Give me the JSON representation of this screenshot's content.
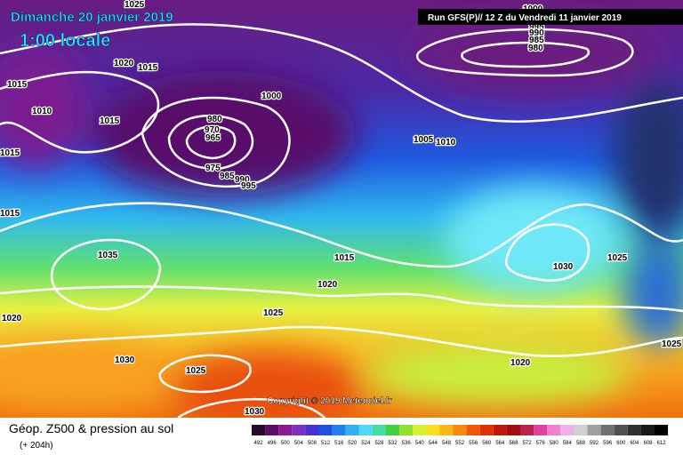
{
  "header": {
    "date": "Dimanche 20 janvier 2019",
    "time": "1:00 locale",
    "run": "Run GFS(P)// 12 Z du Vendredi 11 janvier 2019"
  },
  "isobar_labels": [
    1025,
    1020,
    1015,
    1015,
    1010,
    1015,
    1015,
    1015,
    1000,
    980,
    970,
    965,
    975,
    985,
    990,
    995,
    1005,
    1010,
    1000,
    995,
    990,
    985,
    980,
    1035,
    1015,
    1020,
    1030,
    1025,
    1025,
    1020,
    1030,
    1025,
    1030,
    1020,
    1025
  ],
  "copyright": "Copyright © 2019 Meteociel.fr",
  "footer": {
    "title": "Géop. Z500 & pression au sol",
    "lead": "(+ 204h)"
  },
  "scale_labels": [
    492,
    496,
    500,
    504,
    508,
    512,
    516,
    520,
    524,
    528,
    532,
    536,
    540,
    544,
    548,
    552,
    556,
    560,
    564,
    568,
    572,
    576,
    580,
    584,
    588,
    592,
    596,
    600,
    604,
    608,
    612
  ]
}
